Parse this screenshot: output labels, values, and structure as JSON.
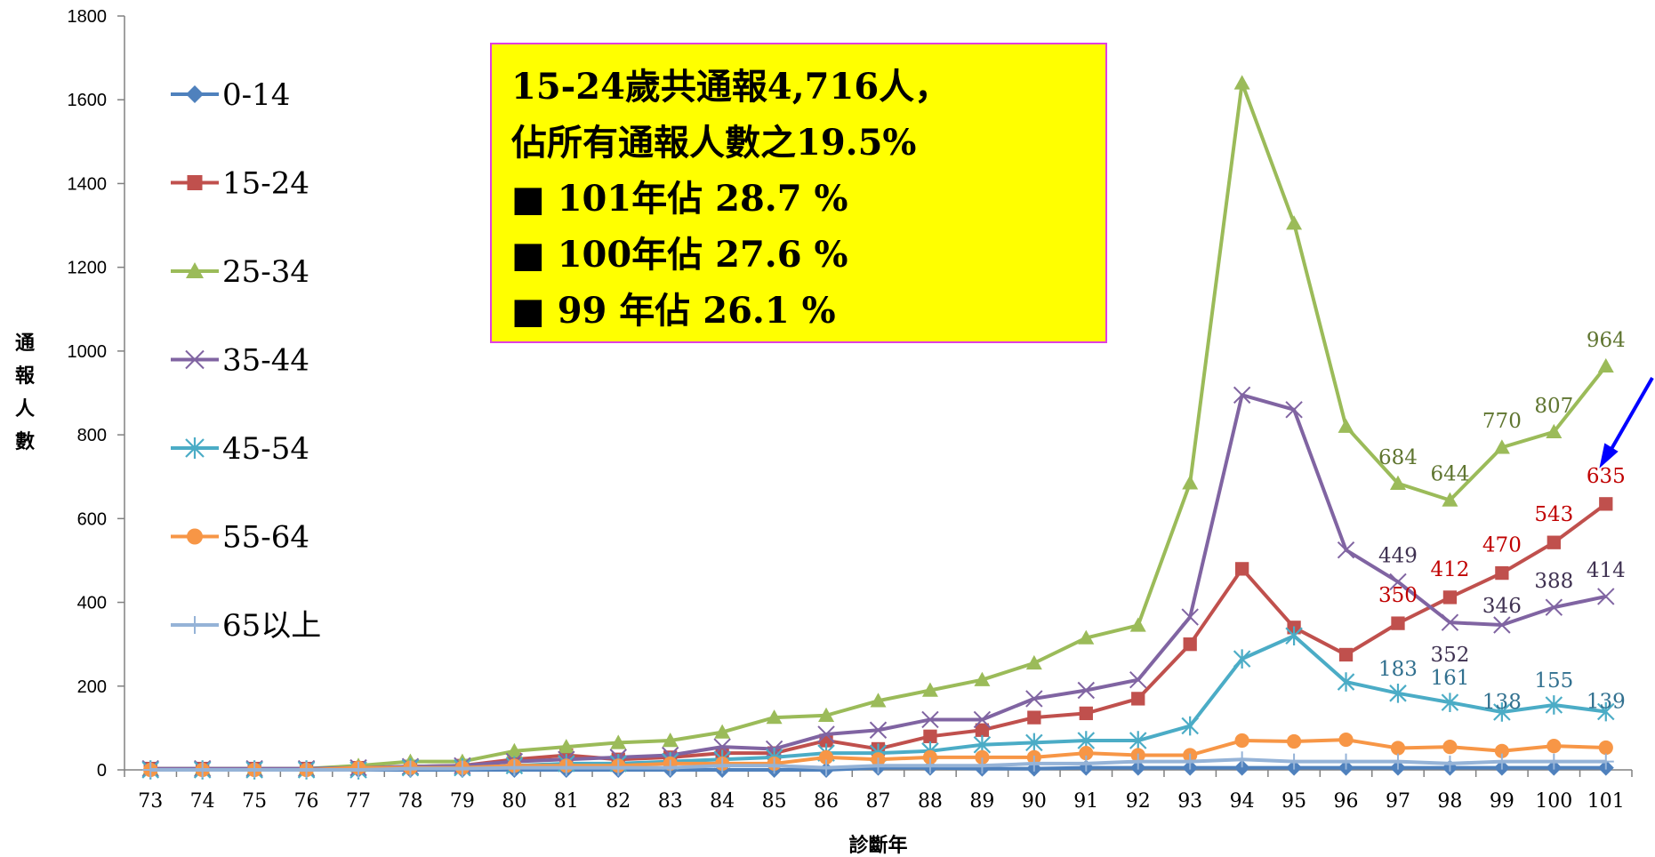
{
  "chart_data": {
    "type": "line",
    "xlabel": "診斷年",
    "ylabel": "通報人數",
    "ylim": [
      0,
      1800
    ],
    "yticks": [
      0,
      200,
      400,
      600,
      800,
      1000,
      1200,
      1400,
      1600,
      1800
    ],
    "categories": [
      "73",
      "74",
      "75",
      "76",
      "77",
      "78",
      "79",
      "80",
      "81",
      "82",
      "83",
      "84",
      "85",
      "86",
      "87",
      "88",
      "89",
      "90",
      "91",
      "92",
      "93",
      "94",
      "95",
      "96",
      "97",
      "98",
      "99",
      "100",
      "101"
    ],
    "legend_position": "left",
    "series": [
      {
        "name": "0-14",
        "color": "#4f81bd",
        "marker": "diamond",
        "values": [
          0,
          0,
          0,
          0,
          0,
          0,
          0,
          0,
          0,
          0,
          0,
          0,
          0,
          0,
          5,
          5,
          3,
          3,
          5,
          5,
          5,
          5,
          5,
          5,
          5,
          5,
          5,
          5,
          5
        ]
      },
      {
        "name": "15-24",
        "color": "#c0504d",
        "marker": "square",
        "values": [
          3,
          3,
          3,
          3,
          5,
          8,
          10,
          25,
          35,
          25,
          30,
          40,
          40,
          70,
          50,
          80,
          95,
          125,
          135,
          170,
          300,
          480,
          340,
          275,
          350,
          412,
          470,
          543,
          635
        ]
      },
      {
        "name": "25-34",
        "color": "#9bbb59",
        "marker": "triangle",
        "values": [
          3,
          3,
          3,
          3,
          10,
          20,
          20,
          45,
          55,
          65,
          70,
          90,
          125,
          130,
          165,
          190,
          215,
          255,
          315,
          345,
          685,
          1640,
          1305,
          820,
          684,
          644,
          770,
          807,
          964
        ]
      },
      {
        "name": "35-44",
        "color": "#8064a2",
        "marker": "x",
        "values": [
          3,
          3,
          3,
          3,
          5,
          8,
          10,
          20,
          25,
          30,
          35,
          55,
          50,
          85,
          95,
          120,
          120,
          170,
          190,
          215,
          365,
          895,
          860,
          525,
          449,
          352,
          346,
          388,
          414
        ]
      },
      {
        "name": "45-54",
        "color": "#4bacc6",
        "marker": "star",
        "values": [
          0,
          0,
          0,
          0,
          0,
          5,
          5,
          10,
          15,
          15,
          20,
          25,
          30,
          40,
          40,
          45,
          60,
          65,
          70,
          70,
          105,
          265,
          320,
          210,
          183,
          161,
          138,
          155,
          139
        ]
      },
      {
        "name": "55-64",
        "color": "#f79646",
        "marker": "circle",
        "values": [
          0,
          0,
          0,
          0,
          5,
          5,
          5,
          10,
          10,
          10,
          15,
          15,
          15,
          30,
          25,
          30,
          30,
          30,
          40,
          35,
          35,
          70,
          68,
          72,
          52,
          55,
          45,
          57,
          53
        ]
      },
      {
        "name": "65以上",
        "color": "#95b3d7",
        "marker": "plus",
        "values": [
          0,
          0,
          0,
          0,
          0,
          3,
          3,
          5,
          5,
          5,
          5,
          10,
          10,
          5,
          10,
          10,
          10,
          15,
          15,
          20,
          20,
          25,
          20,
          20,
          20,
          15,
          20,
          20,
          20
        ]
      }
    ],
    "data_labels": [
      {
        "series": "25-34",
        "x": "97",
        "text": "684",
        "color": "#5f7530"
      },
      {
        "series": "25-34",
        "x": "98",
        "text": "644",
        "color": "#5f7530"
      },
      {
        "series": "25-34",
        "x": "99",
        "text": "770",
        "color": "#5f7530"
      },
      {
        "series": "25-34",
        "x": "100",
        "text": "807",
        "color": "#5f7530"
      },
      {
        "series": "25-34",
        "x": "101",
        "text": "964",
        "color": "#5f7530"
      },
      {
        "series": "15-24",
        "x": "97",
        "text": "350",
        "color": "#c00000"
      },
      {
        "series": "15-24",
        "x": "98",
        "text": "412",
        "color": "#c00000"
      },
      {
        "series": "15-24",
        "x": "99",
        "text": "470",
        "color": "#c00000"
      },
      {
        "series": "15-24",
        "x": "100",
        "text": "543",
        "color": "#c00000"
      },
      {
        "series": "15-24",
        "x": "101",
        "text": "635",
        "color": "#c00000"
      },
      {
        "series": "35-44",
        "x": "97",
        "text": "449",
        "color": "#3f3151"
      },
      {
        "series": "35-44",
        "x": "98",
        "text": "352",
        "color": "#3f3151"
      },
      {
        "series": "35-44",
        "x": "99",
        "text": "346",
        "color": "#3f3151"
      },
      {
        "series": "35-44",
        "x": "100",
        "text": "388",
        "color": "#3f3151"
      },
      {
        "series": "35-44",
        "x": "101",
        "text": "414",
        "color": "#3f3151"
      },
      {
        "series": "45-54",
        "x": "97",
        "text": "183",
        "color": "#31708f"
      },
      {
        "series": "45-54",
        "x": "98",
        "text": "161",
        "color": "#31708f"
      },
      {
        "series": "45-54",
        "x": "99",
        "text": "138",
        "color": "#31708f"
      },
      {
        "series": "45-54",
        "x": "100",
        "text": "155",
        "color": "#31708f"
      },
      {
        "series": "45-54",
        "x": "101",
        "text": "139",
        "color": "#31708f"
      }
    ],
    "annotation": {
      "lines": [
        "15-24歲共通報4,716人，",
        "佔所有通報人數之19.5%",
        "■ 101年佔 28.7 %",
        "■ 100年佔 27.6 %",
        "■ 99  年佔 26.1 %"
      ],
      "background": "#ffff00",
      "border": "#e040e0"
    },
    "arrow_color": "#0000ff"
  }
}
